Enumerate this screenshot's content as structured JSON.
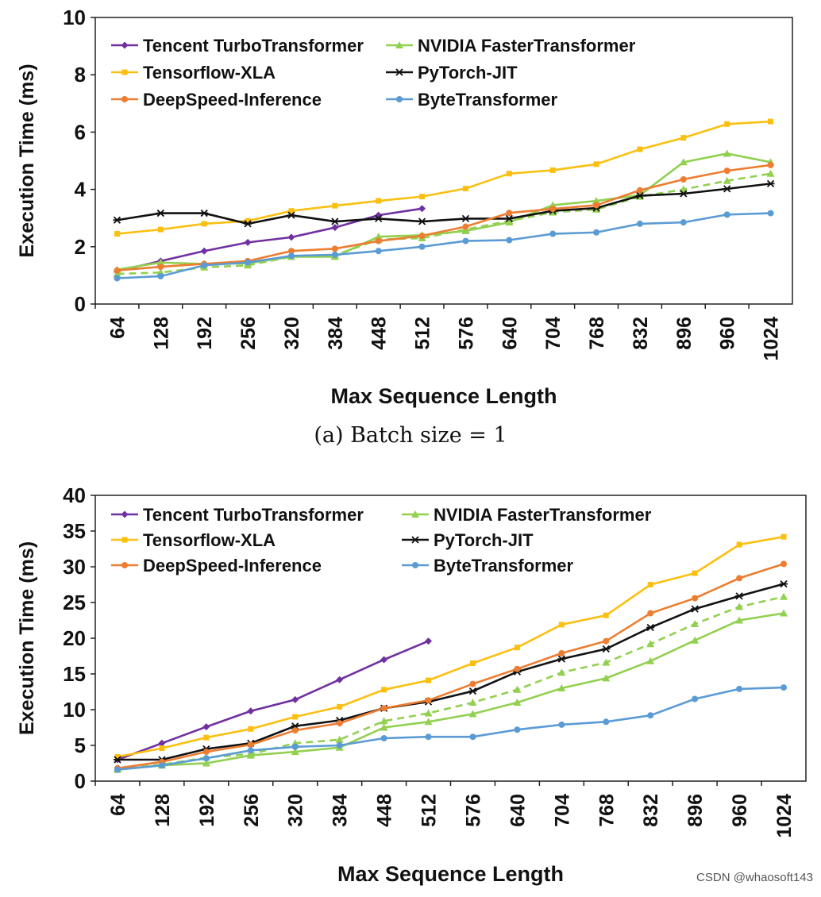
{
  "chart_data": [
    {
      "type": "line",
      "title": "",
      "caption": "(a) Batch size = 1",
      "xlabel": "Max Sequence Length",
      "ylabel": "Execution Time (ms)",
      "ylim": [
        0,
        10
      ],
      "yticks": [
        0,
        2,
        4,
        6,
        8,
        10
      ],
      "grid": false,
      "legend": "top-left, two columns",
      "categories": [
        "64",
        "128",
        "192",
        "256",
        "320",
        "384",
        "448",
        "512",
        "576",
        "640",
        "704",
        "768",
        "832",
        "896",
        "960",
        "1024"
      ],
      "series": [
        {
          "name": "Tencent TurboTransformer",
          "color": "#7030a0",
          "marker": "diamond",
          "dashed": false,
          "values": [
            1.15,
            1.5,
            1.85,
            2.15,
            2.33,
            2.67,
            3.1,
            3.33,
            null,
            null,
            null,
            null,
            null,
            null,
            null,
            null
          ]
        },
        {
          "name": "NVIDIA FasterTransformer",
          "color": "#92d050",
          "marker": "triangle",
          "dashed": false,
          "values": [
            1.2,
            1.45,
            1.4,
            1.42,
            1.65,
            1.65,
            2.35,
            2.4,
            2.55,
            2.85,
            3.45,
            3.6,
            3.8,
            4.95,
            5.25,
            4.95
          ]
        },
        {
          "name": "",
          "color": "#92d050",
          "marker": "triangle",
          "dashed": true,
          "values": [
            1.05,
            1.1,
            1.28,
            1.35,
            1.65,
            1.7,
            2.25,
            2.3,
            2.6,
            2.9,
            3.2,
            3.3,
            3.75,
            4.0,
            4.3,
            4.55
          ]
        },
        {
          "name": "Tensorflow-XLA",
          "color": "#fbbf10",
          "marker": "square",
          "dashed": false,
          "values": [
            2.45,
            2.6,
            2.8,
            2.9,
            3.25,
            3.43,
            3.6,
            3.75,
            4.03,
            4.55,
            4.67,
            4.88,
            5.4,
            5.8,
            6.28,
            6.37
          ]
        },
        {
          "name": "PyTorch-JIT",
          "color": "#111111",
          "marker": "star",
          "dashed": false,
          "values": [
            2.93,
            3.17,
            3.17,
            2.8,
            3.1,
            2.88,
            2.98,
            2.88,
            2.98,
            2.98,
            3.25,
            3.35,
            3.78,
            3.85,
            4.02,
            4.2
          ]
        },
        {
          "name": "DeepSpeed-Inference",
          "color": "#ed7d31",
          "marker": "circle",
          "dashed": false,
          "values": [
            1.17,
            1.3,
            1.4,
            1.5,
            1.85,
            1.93,
            2.2,
            2.38,
            2.7,
            3.18,
            3.32,
            3.45,
            3.97,
            4.35,
            4.65,
            4.85
          ]
        },
        {
          "name": "ByteTransformer",
          "color": "#5b9bd5",
          "marker": "circle",
          "dashed": false,
          "values": [
            0.9,
            0.97,
            1.35,
            1.45,
            1.68,
            1.72,
            1.85,
            2.0,
            2.2,
            2.23,
            2.45,
            2.5,
            2.8,
            2.85,
            3.12,
            3.17
          ]
        }
      ]
    },
    {
      "type": "line",
      "title": "",
      "caption": "",
      "xlabel": "Max Sequence Length",
      "ylabel": "Execution Time (ms)",
      "ylim": [
        0,
        40
      ],
      "yticks": [
        0,
        5,
        10,
        15,
        20,
        25,
        30,
        35,
        40
      ],
      "grid": false,
      "legend": "top-left, two columns",
      "categories": [
        "64",
        "128",
        "192",
        "256",
        "320",
        "384",
        "448",
        "512",
        "576",
        "640",
        "704",
        "768",
        "832",
        "896",
        "960",
        "1024"
      ],
      "series": [
        {
          "name": "Tencent TurboTransformer",
          "color": "#7030a0",
          "marker": "diamond",
          "dashed": false,
          "values": [
            3.0,
            5.3,
            7.6,
            9.8,
            11.4,
            14.2,
            17.0,
            19.6,
            null,
            null,
            null,
            null,
            null,
            null,
            null,
            null
          ]
        },
        {
          "name": "NVIDIA FasterTransformer",
          "color": "#92d050",
          "marker": "triangle",
          "dashed": false,
          "values": [
            1.6,
            2.2,
            2.5,
            3.6,
            4.1,
            4.7,
            7.5,
            8.3,
            9.4,
            11.0,
            13.0,
            14.4,
            16.8,
            19.7,
            22.5,
            23.5
          ]
        },
        {
          "name": "",
          "color": "#92d050",
          "marker": "triangle",
          "dashed": true,
          "values": [
            1.8,
            2.3,
            3.3,
            3.8,
            5.3,
            5.8,
            8.4,
            9.5,
            11.0,
            12.8,
            15.2,
            16.6,
            19.2,
            22.0,
            24.4,
            25.8
          ]
        },
        {
          "name": "Tensorflow-XLA",
          "color": "#fbbf10",
          "marker": "square",
          "dashed": false,
          "values": [
            3.4,
            4.6,
            6.1,
            7.3,
            9.0,
            10.4,
            12.8,
            14.1,
            16.5,
            18.7,
            21.9,
            23.2,
            27.5,
            29.1,
            33.1,
            34.2
          ]
        },
        {
          "name": "PyTorch-JIT",
          "color": "#111111",
          "marker": "star",
          "dashed": false,
          "values": [
            3.0,
            3.0,
            4.5,
            5.3,
            7.7,
            8.5,
            10.2,
            11.1,
            12.6,
            15.3,
            17.1,
            18.5,
            21.5,
            24.1,
            25.9,
            27.6
          ]
        },
        {
          "name": "DeepSpeed-Inference",
          "color": "#ed7d31",
          "marker": "circle",
          "dashed": false,
          "values": [
            1.8,
            2.7,
            4.1,
            5.1,
            7.1,
            8.1,
            10.2,
            11.3,
            13.6,
            15.7,
            17.9,
            19.6,
            23.5,
            25.6,
            28.4,
            30.4
          ]
        },
        {
          "name": "ByteTransformer",
          "color": "#5b9bd5",
          "marker": "circle",
          "dashed": false,
          "values": [
            1.6,
            2.2,
            3.2,
            4.3,
            4.8,
            5.0,
            6.0,
            6.2,
            6.2,
            7.2,
            7.9,
            8.3,
            9.2,
            11.5,
            12.9,
            13.1
          ]
        }
      ]
    }
  ],
  "watermark": "CSDN @whaosoft143"
}
